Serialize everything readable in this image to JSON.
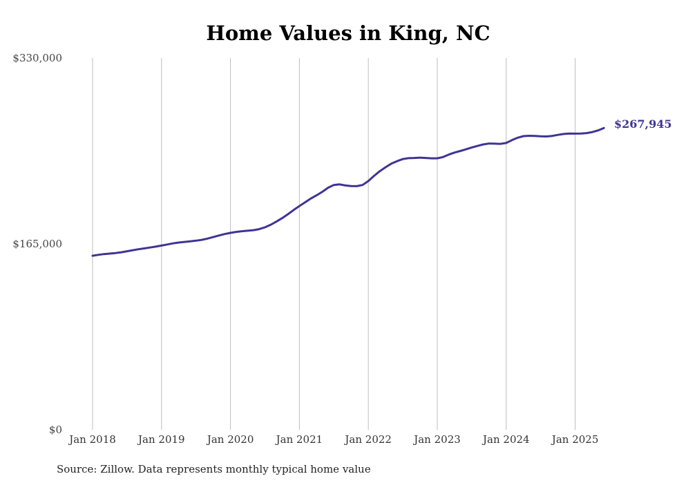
{
  "chart_data": {
    "type": "line",
    "title": "Home Values in King, NC",
    "source": "Source: Zillow. Data represents monthly typical home value",
    "xlabel": "",
    "ylabel": "",
    "ylim": [
      0,
      330000
    ],
    "yticks": [
      {
        "value": 0,
        "label": "$0"
      },
      {
        "value": 165000,
        "label": "$165,000"
      },
      {
        "value": 330000,
        "label": "$330,000"
      }
    ],
    "xticks": [
      {
        "value": "2018-01",
        "label": "Jan 2018"
      },
      {
        "value": "2019-01",
        "label": "Jan 2019"
      },
      {
        "value": "2020-01",
        "label": "Jan 2020"
      },
      {
        "value": "2021-01",
        "label": "Jan 2021"
      },
      {
        "value": "2022-01",
        "label": "Jan 2022"
      },
      {
        "value": "2023-01",
        "label": "Jan 2023"
      },
      {
        "value": "2024-01",
        "label": "Jan 2024"
      },
      {
        "value": "2025-01",
        "label": "Jan 2025"
      }
    ],
    "grid": {
      "vertical": true,
      "horizontal": false
    },
    "line_color": "#3d3494",
    "end_label": "$267,945",
    "series": [
      {
        "x": [
          "2018-01",
          "2018-02",
          "2018-03",
          "2018-04",
          "2018-05",
          "2018-06",
          "2018-07",
          "2018-08",
          "2018-09",
          "2018-10",
          "2018-11",
          "2018-12",
          "2019-01",
          "2019-02",
          "2019-03",
          "2019-04",
          "2019-05",
          "2019-06",
          "2019-07",
          "2019-08",
          "2019-09",
          "2019-10",
          "2019-11",
          "2019-12",
          "2020-01",
          "2020-02",
          "2020-03",
          "2020-04",
          "2020-05",
          "2020-06",
          "2020-07",
          "2020-08",
          "2020-09",
          "2020-10",
          "2020-11",
          "2020-12",
          "2021-01",
          "2021-02",
          "2021-03",
          "2021-04",
          "2021-05",
          "2021-06",
          "2021-07",
          "2021-08",
          "2021-09",
          "2021-10",
          "2021-11",
          "2021-12",
          "2022-01",
          "2022-02",
          "2022-03",
          "2022-04",
          "2022-05",
          "2022-06",
          "2022-07",
          "2022-08",
          "2022-09",
          "2022-10",
          "2022-11",
          "2022-12",
          "2023-01",
          "2023-02",
          "2023-03",
          "2023-04",
          "2023-05",
          "2023-06",
          "2023-07",
          "2023-08",
          "2023-09",
          "2023-10",
          "2023-11",
          "2023-12",
          "2024-01",
          "2024-02",
          "2024-03",
          "2024-04",
          "2024-05",
          "2024-06",
          "2024-07",
          "2024-08",
          "2024-09",
          "2024-10",
          "2024-11",
          "2024-12",
          "2025-01",
          "2025-02",
          "2025-03",
          "2025-04",
          "2025-05",
          "2025-06"
        ],
        "values": [
          154500,
          155300,
          156000,
          156400,
          156900,
          157600,
          158500,
          159400,
          160300,
          161000,
          161800,
          162600,
          163500,
          164500,
          165500,
          166200,
          166800,
          167300,
          167900,
          168600,
          169700,
          171100,
          172500,
          173800,
          174800,
          175700,
          176300,
          176700,
          177200,
          178100,
          179700,
          182000,
          184800,
          187900,
          191400,
          195100,
          198600,
          202000,
          205300,
          208200,
          211300,
          214900,
          217300,
          217900,
          216900,
          216400,
          216300,
          217300,
          220800,
          225400,
          229600,
          233100,
          236300,
          238500,
          240300,
          241100,
          241300,
          241600,
          241300,
          241000,
          241000,
          242100,
          244300,
          246100,
          247500,
          249000,
          250600,
          252000,
          253300,
          254100,
          254000,
          253800,
          254600,
          257100,
          259300,
          260700,
          261000,
          260800,
          260500,
          260400,
          260900,
          261800,
          262600,
          263000,
          262900,
          263000,
          263400,
          264300,
          265800,
          267945
        ]
      }
    ]
  }
}
